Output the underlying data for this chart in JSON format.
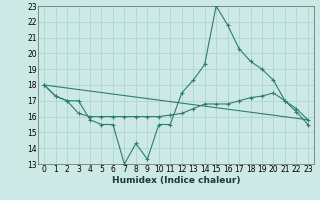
{
  "xlabel": "Humidex (Indice chaleur)",
  "xlim": [
    -0.5,
    23.5
  ],
  "ylim": [
    13,
    23
  ],
  "yticks": [
    13,
    14,
    15,
    16,
    17,
    18,
    19,
    20,
    21,
    22,
    23
  ],
  "xticks": [
    0,
    1,
    2,
    3,
    4,
    5,
    6,
    7,
    8,
    9,
    10,
    11,
    12,
    13,
    14,
    15,
    16,
    17,
    18,
    19,
    20,
    21,
    22,
    23
  ],
  "bg_color": "#cce9e5",
  "grid_color": "#b0d8d4",
  "line_color": "#2e7d6e",
  "line1_x": [
    0,
    1,
    2,
    3,
    4,
    5,
    6,
    7,
    8,
    9,
    10,
    11,
    12,
    13,
    14,
    15,
    16,
    17,
    18,
    19,
    20,
    21,
    22,
    23
  ],
  "line1_y": [
    18.0,
    17.3,
    17.0,
    17.0,
    15.8,
    15.5,
    15.5,
    13.0,
    14.3,
    13.3,
    15.5,
    15.5,
    17.5,
    18.3,
    19.3,
    23.0,
    21.8,
    20.3,
    19.5,
    19.0,
    18.3,
    17.0,
    16.3,
    15.5
  ],
  "line2_x": [
    0,
    1,
    2,
    3,
    4,
    5,
    6,
    7,
    8,
    9,
    10,
    11,
    12,
    13,
    14,
    15,
    16,
    17,
    18,
    19,
    20,
    21,
    22,
    23
  ],
  "line2_y": [
    18.0,
    17.3,
    17.0,
    16.2,
    16.0,
    16.0,
    16.0,
    16.0,
    16.0,
    16.0,
    16.0,
    16.1,
    16.2,
    16.5,
    16.8,
    16.8,
    16.8,
    17.0,
    17.2,
    17.3,
    17.5,
    17.0,
    16.5,
    15.8
  ],
  "line3_x": [
    0,
    23
  ],
  "line3_y": [
    18.0,
    15.8
  ]
}
